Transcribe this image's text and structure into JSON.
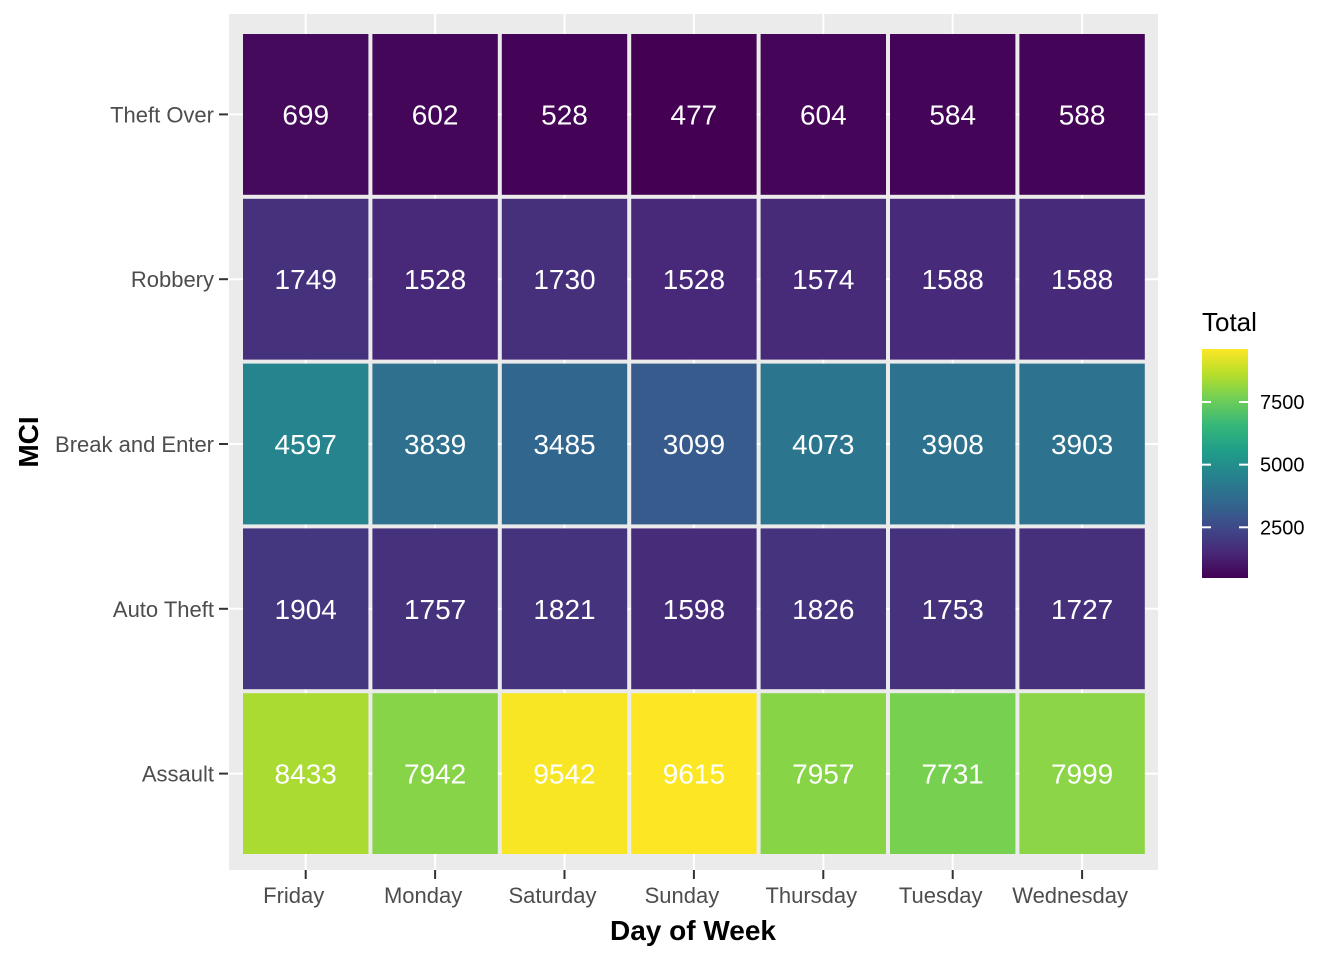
{
  "chart_data": {
    "type": "heatmap",
    "xlabel": "Day of Week",
    "ylabel": "MCI",
    "x_categories": [
      "Friday",
      "Monday",
      "Saturday",
      "Sunday",
      "Thursday",
      "Tuesday",
      "Wednesday"
    ],
    "y_categories": [
      "Theft Over",
      "Robbery",
      "Break and Enter",
      "Auto Theft",
      "Assault"
    ],
    "values": [
      [
        699,
        602,
        528,
        477,
        604,
        584,
        588
      ],
      [
        1749,
        1528,
        1730,
        1528,
        1574,
        1588,
        1588
      ],
      [
        4597,
        3839,
        3485,
        3099,
        4073,
        3908,
        3903
      ],
      [
        1904,
        1757,
        1821,
        1598,
        1826,
        1753,
        1727
      ],
      [
        8433,
        7942,
        9542,
        9615,
        7957,
        7731,
        7999
      ]
    ],
    "legend": {
      "title": "Total",
      "position": "right",
      "ticks": [
        2500,
        5000,
        7500
      ],
      "range": [
        477,
        9615
      ]
    },
    "colormap": [
      "#440154",
      "#482878",
      "#3e4a89",
      "#31688e",
      "#26828e",
      "#1f9e89",
      "#35b779",
      "#6ece58",
      "#b5de2b",
      "#fde725"
    ],
    "panel_background": "#ebebeb",
    "grid": true
  }
}
